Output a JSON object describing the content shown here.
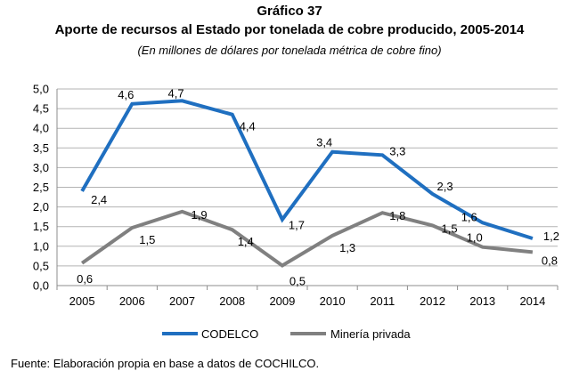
{
  "header": {
    "title": "Gráfico 37",
    "subtitle": "Aporte de recursos al Estado por tonelada de cobre producido, 2005-2014",
    "unit_note": "(En millones de dólares por tonelada métrica de cobre fino)"
  },
  "footer": {
    "source": "Fuente: Elaboración propia en base a datos de COCHILCO."
  },
  "chart_data": {
    "type": "line",
    "title": "Aporte de recursos al Estado por tonelada de cobre producido, 2005-2014",
    "xlabel": "",
    "ylabel": "",
    "categories": [
      "2005",
      "2006",
      "2007",
      "2008",
      "2009",
      "2010",
      "2011",
      "2012",
      "2013",
      "2014"
    ],
    "ylim": [
      0,
      5
    ],
    "yticks": [
      "0,0",
      "0,5",
      "1,0",
      "1,5",
      "2,0",
      "2,5",
      "3,0",
      "3,5",
      "4,0",
      "4,5",
      "5,0"
    ],
    "grid": true,
    "legend_position": "bottom",
    "series": [
      {
        "name": "CODELCO",
        "color": "#1f6fc0",
        "values": [
          2.4,
          4.62,
          4.7,
          4.35,
          1.68,
          3.4,
          3.32,
          2.33,
          1.6,
          1.2
        ],
        "labels": [
          "2,4",
          "4,6",
          "4,7",
          "4,4",
          "1,7",
          "3,4",
          "3,3",
          "2,3",
          "1,6",
          "1,2"
        ]
      },
      {
        "name": "Minería privada",
        "color": "#808080",
        "values": [
          0.57,
          1.47,
          1.88,
          1.42,
          0.51,
          1.27,
          1.85,
          1.53,
          0.98,
          0.85
        ],
        "labels": [
          "0,6",
          "1,5",
          "1,9",
          "1,4",
          "0,5",
          "1,3",
          "1,8",
          "1,5",
          "1,0",
          "0,8"
        ]
      }
    ]
  }
}
